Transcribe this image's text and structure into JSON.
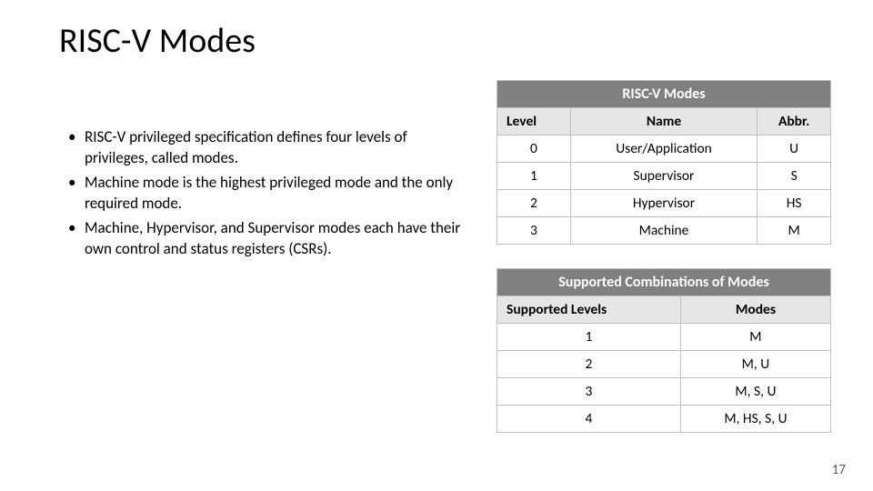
{
  "title": "RISC-V Modes",
  "bullets": [
    "RISC-V privileged specification defines four levels of privileges, called modes.",
    "Machine mode is the highest privileged mode and the only required mode.",
    " Machine, Hypervisor, and Supervisor modes each have their own control and status registers (CSRs)."
  ],
  "table1": {
    "title": "RISC-V Modes",
    "headers": [
      "Level",
      "Name",
      "Abbr."
    ],
    "rows": [
      [
        "0",
        "User/Application",
        "U"
      ],
      [
        "1",
        "Supervisor",
        "S"
      ],
      [
        "2",
        "Hypervisor",
        "HS"
      ],
      [
        "3",
        "Machine",
        "M"
      ]
    ]
  },
  "table2": {
    "title": "Supported Combinations of Modes",
    "headers": [
      "Supported Levels",
      "Modes"
    ],
    "rows": [
      [
        "1",
        "M"
      ],
      [
        "2",
        "M, U"
      ],
      [
        "3",
        "M, S, U"
      ],
      [
        "4",
        "M, HS, S, U"
      ]
    ]
  },
  "pageNumber": "17",
  "colors": {
    "titleBg": "#808080",
    "headerBg": "#e6e6e6",
    "border": "#bfbfbf",
    "text": "#000000",
    "titleText": "#ffffff",
    "pageNum": "#595959"
  }
}
